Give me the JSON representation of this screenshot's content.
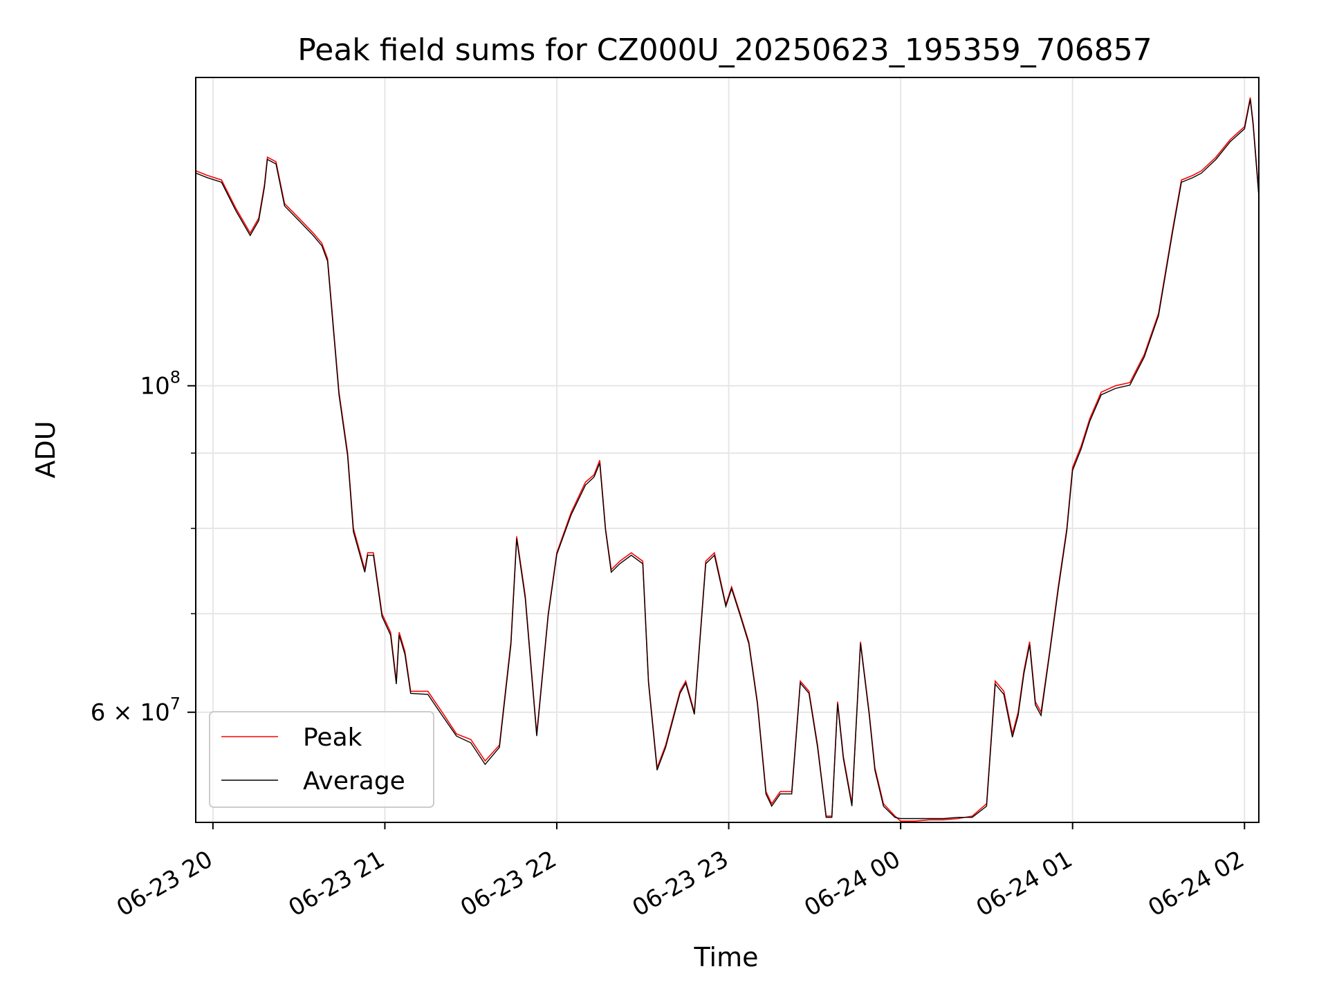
{
  "chart_data": {
    "type": "line",
    "title": "Peak field sums for CZ000U_20250623_195359_706857",
    "xlabel": "Time",
    "ylabel": "ADU",
    "x_ticks": [
      "06-23 20",
      "06-23 21",
      "06-23 22",
      "06-23 23",
      "06-24 00",
      "06-24 01",
      "06-24 02"
    ],
    "y_ticks": [
      {
        "value": 100000000,
        "label_base": "10",
        "label_exp": "8"
      },
      {
        "value": 60000000,
        "label_base": "6 × 10",
        "label_exp": "7"
      }
    ],
    "y_scale": "log",
    "xlim": [
      "2025-06-23 19:54",
      "2025-06-24 02:05"
    ],
    "ylim": [
      50500000,
      162000000
    ],
    "grid": true,
    "legend_position": "lower-left",
    "series": [
      {
        "name": "Peak",
        "color": "#ff0000",
        "x": [
          "2025-06-23 19:54",
          "2025-06-23 19:58",
          "2025-06-23 20:03",
          "2025-06-23 20:08",
          "2025-06-23 20:13",
          "2025-06-23 20:16",
          "2025-06-23 20:18",
          "2025-06-23 20:19",
          "2025-06-23 20:22",
          "2025-06-23 20:25",
          "2025-06-23 20:30",
          "2025-06-23 20:35",
          "2025-06-23 20:38",
          "2025-06-23 20:40",
          "2025-06-23 20:44",
          "2025-06-23 20:47",
          "2025-06-23 20:49",
          "2025-06-23 20:53",
          "2025-06-23 20:54",
          "2025-06-23 20:56",
          "2025-06-23 20:59",
          "2025-06-23 21:02",
          "2025-06-23 21:04",
          "2025-06-23 21:05",
          "2025-06-23 21:07",
          "2025-06-23 21:09",
          "2025-06-23 21:15",
          "2025-06-23 21:20",
          "2025-06-23 21:25",
          "2025-06-23 21:30",
          "2025-06-23 21:35",
          "2025-06-23 21:40",
          "2025-06-23 21:44",
          "2025-06-23 21:46",
          "2025-06-23 21:49",
          "2025-06-23 21:53",
          "2025-06-23 21:57",
          "2025-06-23 22:00",
          "2025-06-23 22:05",
          "2025-06-23 22:10",
          "2025-06-23 22:13",
          "2025-06-23 22:15",
          "2025-06-23 22:17",
          "2025-06-23 22:19",
          "2025-06-23 22:22",
          "2025-06-23 22:26",
          "2025-06-23 22:30",
          "2025-06-23 22:32",
          "2025-06-23 22:35",
          "2025-06-23 22:38",
          "2025-06-23 22:43",
          "2025-06-23 22:45",
          "2025-06-23 22:48",
          "2025-06-23 22:52",
          "2025-06-23 22:55",
          "2025-06-23 22:59",
          "2025-06-23 23:01",
          "2025-06-23 23:04",
          "2025-06-23 23:07",
          "2025-06-23 23:10",
          "2025-06-23 23:13",
          "2025-06-23 23:15",
          "2025-06-23 23:18",
          "2025-06-23 23:22",
          "2025-06-23 23:25",
          "2025-06-23 23:28",
          "2025-06-23 23:31",
          "2025-06-23 23:34",
          "2025-06-23 23:36",
          "2025-06-23 23:38",
          "2025-06-23 23:40",
          "2025-06-23 23:43",
          "2025-06-23 23:46",
          "2025-06-23 23:49",
          "2025-06-23 23:51",
          "2025-06-23 23:54",
          "2025-06-23 23:58",
          "2025-06-24 00:00",
          "2025-06-24 00:05",
          "2025-06-24 00:10",
          "2025-06-24 00:15",
          "2025-06-24 00:20",
          "2025-06-24 00:25",
          "2025-06-24 00:30",
          "2025-06-24 00:33",
          "2025-06-24 00:36",
          "2025-06-24 00:39",
          "2025-06-24 00:41",
          "2025-06-24 00:43",
          "2025-06-24 00:45",
          "2025-06-24 00:47",
          "2025-06-24 00:49",
          "2025-06-24 00:52",
          "2025-06-24 00:55",
          "2025-06-24 00:58",
          "2025-06-24 01:00",
          "2025-06-24 01:03",
          "2025-06-24 01:06",
          "2025-06-24 01:10",
          "2025-06-24 01:15",
          "2025-06-24 01:20",
          "2025-06-24 01:25",
          "2025-06-24 01:30",
          "2025-06-24 01:35",
          "2025-06-24 01:38",
          "2025-06-24 01:42",
          "2025-06-24 01:45",
          "2025-06-24 01:50",
          "2025-06-24 01:55",
          "2025-06-24 02:00",
          "2025-06-24 02:02",
          "2025-06-24 02:03",
          "2025-06-24 02:05"
        ],
        "values": [
          140000000,
          139000000,
          138000000,
          132000000,
          127000000,
          130000000,
          137000000,
          143000000,
          142000000,
          133000000,
          130000000,
          127000000,
          125000000,
          122000000,
          99000000,
          90000000,
          80000000,
          75000000,
          77000000,
          77000000,
          70000000,
          68000000,
          63000000,
          68000000,
          66000000,
          62000000,
          62000000,
          60000000,
          58000000,
          57500000,
          55600000,
          57000000,
          67000000,
          79000000,
          72000000,
          58000000,
          70000000,
          77000000,
          82000000,
          86000000,
          87000000,
          89000000,
          80000000,
          75000000,
          76000000,
          77000000,
          76000000,
          63000000,
          55000000,
          57000000,
          62000000,
          63000000,
          60000000,
          76000000,
          77000000,
          71000000,
          73000000,
          70000000,
          67000000,
          61000000,
          53000000,
          52000000,
          53000000,
          53000000,
          63000000,
          62000000,
          57000000,
          51000000,
          51000000,
          61000000,
          56000000,
          52000000,
          67000000,
          60000000,
          55000000,
          52000000,
          51000000,
          50600000,
          50600000,
          50700000,
          50700000,
          50800000,
          51000000,
          52000000,
          63000000,
          62000000,
          58000000,
          60000000,
          64000000,
          67000000,
          61000000,
          60000000,
          66000000,
          73000000,
          80000000,
          88000000,
          91000000,
          95000000,
          99000000,
          100000000,
          100500000,
          105000000,
          112000000,
          128000000,
          138000000,
          139000000,
          140000000,
          143000000,
          147000000,
          150000000,
          157000000,
          151000000,
          135000000
        ]
      },
      {
        "name": "Average",
        "color": "#000000",
        "x": [
          "2025-06-23 19:54",
          "2025-06-23 19:58",
          "2025-06-23 20:03",
          "2025-06-23 20:08",
          "2025-06-23 20:13",
          "2025-06-23 20:16",
          "2025-06-23 20:18",
          "2025-06-23 20:19",
          "2025-06-23 20:22",
          "2025-06-23 20:25",
          "2025-06-23 20:30",
          "2025-06-23 20:35",
          "2025-06-23 20:38",
          "2025-06-23 20:40",
          "2025-06-23 20:44",
          "2025-06-23 20:47",
          "2025-06-23 20:49",
          "2025-06-23 20:53",
          "2025-06-23 20:54",
          "2025-06-23 20:56",
          "2025-06-23 20:59",
          "2025-06-23 21:02",
          "2025-06-23 21:04",
          "2025-06-23 21:05",
          "2025-06-23 21:07",
          "2025-06-23 21:09",
          "2025-06-23 21:15",
          "2025-06-23 21:20",
          "2025-06-23 21:25",
          "2025-06-23 21:30",
          "2025-06-23 21:35",
          "2025-06-23 21:40",
          "2025-06-23 21:44",
          "2025-06-23 21:46",
          "2025-06-23 21:49",
          "2025-06-23 21:53",
          "2025-06-23 21:57",
          "2025-06-23 22:00",
          "2025-06-23 22:05",
          "2025-06-23 22:10",
          "2025-06-23 22:13",
          "2025-06-23 22:15",
          "2025-06-23 22:17",
          "2025-06-23 22:19",
          "2025-06-23 22:22",
          "2025-06-23 22:26",
          "2025-06-23 22:30",
          "2025-06-23 22:32",
          "2025-06-23 22:35",
          "2025-06-23 22:38",
          "2025-06-23 22:43",
          "2025-06-23 22:45",
          "2025-06-23 22:48",
          "2025-06-23 22:52",
          "2025-06-23 22:55",
          "2025-06-23 22:59",
          "2025-06-23 23:01",
          "2025-06-23 23:04",
          "2025-06-23 23:07",
          "2025-06-23 23:10",
          "2025-06-23 23:13",
          "2025-06-23 23:15",
          "2025-06-23 23:18",
          "2025-06-23 23:22",
          "2025-06-23 23:25",
          "2025-06-23 23:28",
          "2025-06-23 23:31",
          "2025-06-23 23:34",
          "2025-06-23 23:36",
          "2025-06-23 23:38",
          "2025-06-23 23:40",
          "2025-06-23 23:43",
          "2025-06-23 23:46",
          "2025-06-23 23:49",
          "2025-06-23 23:51",
          "2025-06-23 23:54",
          "2025-06-23 23:58",
          "2025-06-24 00:00",
          "2025-06-24 00:05",
          "2025-06-24 00:10",
          "2025-06-24 00:15",
          "2025-06-24 00:20",
          "2025-06-24 00:25",
          "2025-06-24 00:30",
          "2025-06-24 00:33",
          "2025-06-24 00:36",
          "2025-06-24 00:39",
          "2025-06-24 00:41",
          "2025-06-24 00:43",
          "2025-06-24 00:45",
          "2025-06-24 00:47",
          "2025-06-24 00:49",
          "2025-06-24 00:52",
          "2025-06-24 00:55",
          "2025-06-24 00:58",
          "2025-06-24 01:00",
          "2025-06-24 01:03",
          "2025-06-24 01:06",
          "2025-06-24 01:10",
          "2025-06-24 01:15",
          "2025-06-24 01:20",
          "2025-06-24 01:25",
          "2025-06-24 01:30",
          "2025-06-24 01:35",
          "2025-06-24 01:38",
          "2025-06-24 01:42",
          "2025-06-24 01:45",
          "2025-06-24 01:50",
          "2025-06-24 01:55",
          "2025-06-24 02:00",
          "2025-06-24 02:02",
          "2025-06-24 02:03",
          "2025-06-24 02:05"
        ],
        "values": [
          139500000,
          138500000,
          137500000,
          131500000,
          126500000,
          129500000,
          136500000,
          142500000,
          141500000,
          132500000,
          129500000,
          126500000,
          124500000,
          121500000,
          98600000,
          89600000,
          79600000,
          74700000,
          76700000,
          76700000,
          69700000,
          67700000,
          62700000,
          67700000,
          65700000,
          61800000,
          61700000,
          59700000,
          57800000,
          57200000,
          55300000,
          56800000,
          66700000,
          78700000,
          71700000,
          57800000,
          69800000,
          76800000,
          81700000,
          85600000,
          86700000,
          88600000,
          79800000,
          74700000,
          75700000,
          76700000,
          75700000,
          62800000,
          54800000,
          56800000,
          61800000,
          62800000,
          59800000,
          75700000,
          76700000,
          70800000,
          72800000,
          69800000,
          66800000,
          60800000,
          52800000,
          51800000,
          52800000,
          52800000,
          62800000,
          61800000,
          56800000,
          50900000,
          50900000,
          60800000,
          55800000,
          51800000,
          66800000,
          59800000,
          54800000,
          51800000,
          50900000,
          50800000,
          50800000,
          50800000,
          50800000,
          50900000,
          50900000,
          51800000,
          62700000,
          61700000,
          57700000,
          59700000,
          63700000,
          66700000,
          60700000,
          59700000,
          65800000,
          72700000,
          79700000,
          87600000,
          90600000,
          94600000,
          98600000,
          99600000,
          100100000,
          104600000,
          111600000,
          127500000,
          137500000,
          138500000,
          139500000,
          142500000,
          146500000,
          149500000,
          156500000,
          150500000,
          134500000
        ]
      }
    ]
  }
}
